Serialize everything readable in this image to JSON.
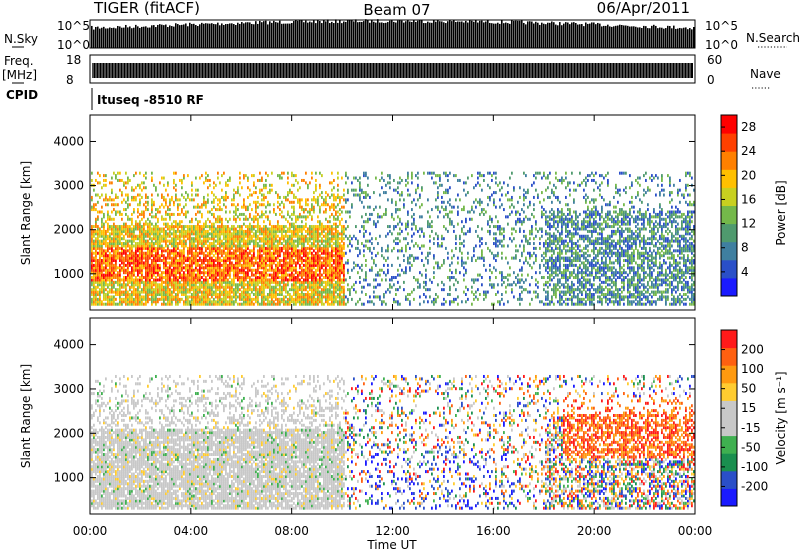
{
  "header": {
    "station": "TIGER (fitACF)",
    "beam": "Beam 07",
    "date": "06/Apr/2011"
  },
  "strips": {
    "nsky_label": "N.Sky",
    "nsky_ticks": [
      "10^5",
      "10^0"
    ],
    "nsearch_label": "N.Search",
    "nsearch_ticks": [
      "10^5",
      "10^0"
    ],
    "freq_label": "Freq.",
    "freq_unit": "[MHz]",
    "freq_ticks": [
      "18",
      "8"
    ],
    "nave_label": "Nave",
    "nave_ticks": [
      "60",
      "0"
    ],
    "cpid_label": "CPID",
    "cpid_value": "Ituseq -8510 RF"
  },
  "colors": {
    "power_scale": [
      "#1a1aff",
      "#2a4fc8",
      "#3f7fa0",
      "#4f9a6e",
      "#74b84a",
      "#c8d020",
      "#ffc000",
      "#ff8000",
      "#ff4000",
      "#ff0000"
    ],
    "velocity_scale": [
      "#ff1a1a",
      "#ff6010",
      "#ff9a10",
      "#ffcc30",
      "#c8c8c8",
      "#c8c8c8",
      "#3fb050",
      "#1a8f4f",
      "#2a4fc8",
      "#1a1aff"
    ]
  },
  "chart_data": [
    {
      "type": "heatmap",
      "name": "power",
      "xlabel": "",
      "ylabel": "Slant Range [km]",
      "yticks": [
        "1000",
        "2000",
        "3000",
        "4000"
      ],
      "ylim": [
        180,
        4600
      ],
      "xlim": [
        "00:00",
        "24:00"
      ],
      "colorbar": {
        "label": "Power [dB]",
        "ticks": [
          "4",
          "8",
          "12",
          "16",
          "20",
          "24",
          "28"
        ],
        "range": [
          0,
          30
        ]
      }
    },
    {
      "type": "heatmap",
      "name": "velocity",
      "xlabel": "Time UT",
      "xticks": [
        "00:00",
        "04:00",
        "08:00",
        "12:00",
        "16:00",
        "20:00",
        "00:00"
      ],
      "ylabel": "Slant Range [km]",
      "yticks": [
        "1000",
        "2000",
        "3000",
        "4000"
      ],
      "ylim": [
        180,
        4600
      ],
      "xlim": [
        "00:00",
        "24:00"
      ],
      "colorbar": {
        "label": "Velocity [m s⁻¹]",
        "ticks": [
          "200",
          "100",
          "50",
          "15",
          "-15",
          "-50",
          "-100",
          "-200"
        ],
        "range": [
          -250,
          250
        ]
      }
    }
  ]
}
